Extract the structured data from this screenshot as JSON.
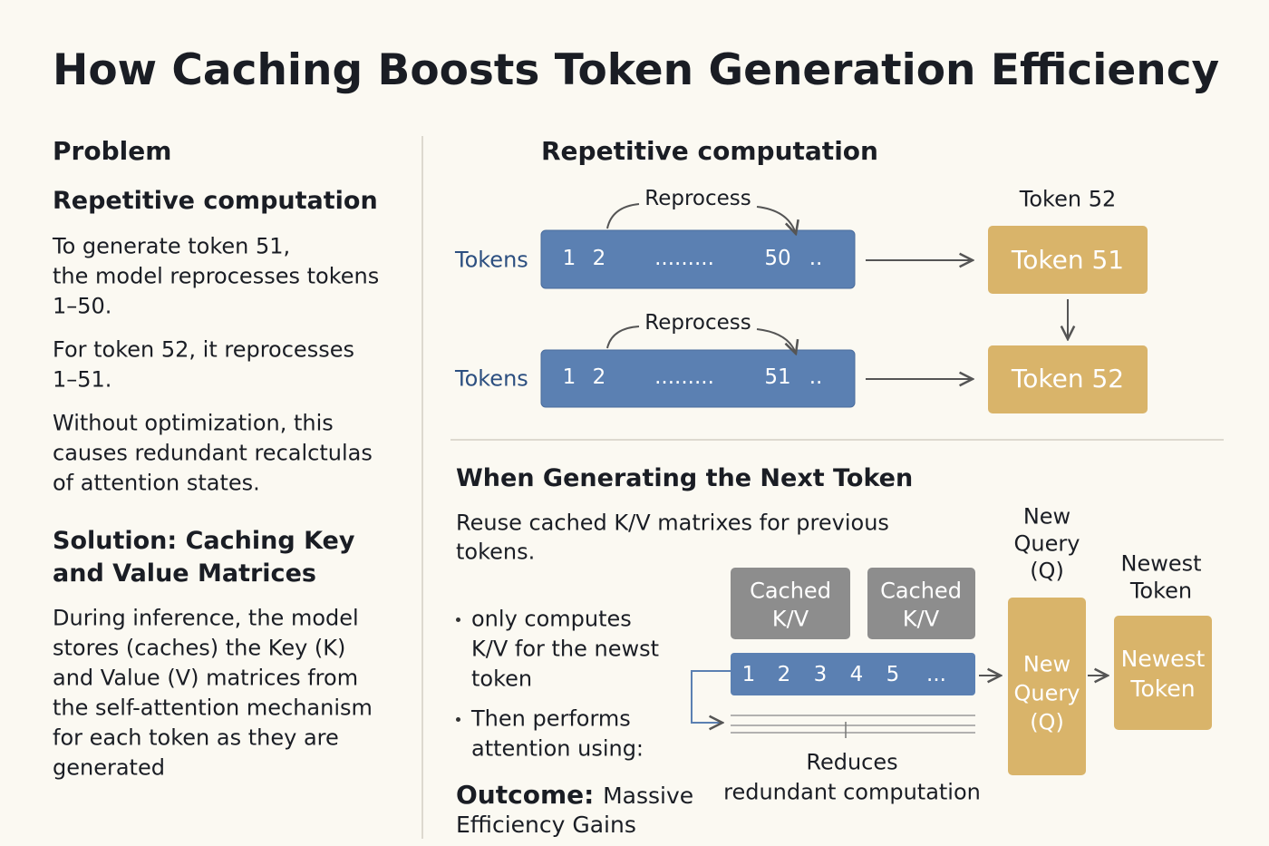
{
  "header": {
    "title": "How Caching Boosts Token Generation Efficiency"
  },
  "problem": {
    "label": "Problem",
    "heading": "Repetitive computation",
    "paragraphs": [
      [
        "To generate token 51,",
        "the model reprocesses tokens",
        "1–50."
      ],
      [
        "For token 52, it reprocesses",
        "1–51."
      ],
      [
        "Without optimization, this",
        "causes redundant recalctulas",
        "of attention states."
      ]
    ]
  },
  "solution": {
    "heading": [
      "Solution: Caching Key",
      "and Value Matrices"
    ],
    "paragraph": [
      "During inference, the model",
      "stores (caches) the Key (K)",
      "and Value (V) matrices from",
      "the self-attention mechanism",
      "for each token as they are",
      "generated"
    ]
  },
  "repetition": {
    "heading": "Repetitive computation",
    "rows": [
      {
        "label": "Tokens",
        "annotation": "Reprocess",
        "sequence": [
          "1",
          "2",
          ".........",
          "50",
          ".."
        ],
        "output": "Token 51",
        "output_caption": "Token 52"
      },
      {
        "label": "Tokens",
        "annotation": "Reprocess",
        "sequence": [
          "1",
          "2",
          ".........",
          "51",
          ".."
        ],
        "output": "Token 52"
      }
    ]
  },
  "caching": {
    "heading": "When Generating the Next Token",
    "intro": [
      "Reuse cached K/V matrixes for previous",
      "tokens."
    ],
    "bullets": [
      [
        "only computes",
        "K/V for the newst",
        "token"
      ],
      [
        "Then performs",
        "attention using:"
      ]
    ],
    "outcome": {
      "label": "Outcome:",
      "text": [
        "Massive",
        "Efficiency Gains"
      ]
    },
    "cache_blocks": [
      [
        "Cached",
        "K/V"
      ],
      [
        "Cached",
        "K/V"
      ]
    ],
    "sequence": [
      "1",
      "2",
      "3",
      "4",
      "5",
      "..."
    ],
    "note": [
      "Reduces",
      "redundant computation"
    ],
    "query": {
      "caption": [
        "New",
        "Query",
        "(Q)"
      ],
      "box": [
        "New",
        "Query",
        "(Q)"
      ]
    },
    "newest": {
      "caption": [
        "Newest",
        "Token"
      ],
      "box": [
        "Newest",
        "Token"
      ]
    }
  }
}
